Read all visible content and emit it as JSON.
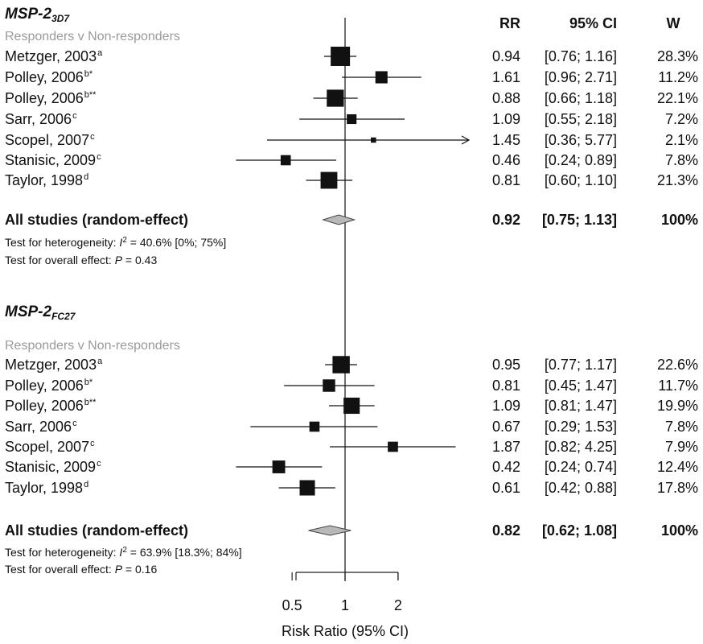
{
  "columns": {
    "rr": "RR",
    "ci": "95% CI",
    "w": "W"
  },
  "chart_data": {
    "type": "forest",
    "xlabel": "Risk Ratio (95% CI)",
    "scale": "log",
    "xlim": [
      0.42,
      2.45
    ],
    "null_value": 1,
    "ticks": [
      {
        "value": 0.5,
        "label": "0.5"
      },
      {
        "value": 1,
        "label": "1"
      },
      {
        "value": 2,
        "label": "2"
      }
    ],
    "groups": [
      {
        "title_main": "MSP-2",
        "title_sub": "3D7",
        "subtitle": "Responders v Non-responders",
        "studies": [
          {
            "name": "Metzger, 2003",
            "note": "a",
            "rr": 0.94,
            "lo": 0.76,
            "hi": 1.16,
            "rr_text": "0.94",
            "ci_text": "[0.76; 1.16]",
            "w": 28.3,
            "w_text": "28.3%"
          },
          {
            "name": "Polley, 2006",
            "note": "b*",
            "rr": 1.61,
            "lo": 0.96,
            "hi": 2.71,
            "rr_text": "1.61",
            "ci_text": "[0.96; 2.71]",
            "w": 11.2,
            "w_text": "11.2%"
          },
          {
            "name": "Polley, 2006",
            "note": "b**",
            "rr": 0.88,
            "lo": 0.66,
            "hi": 1.18,
            "rr_text": "0.88",
            "ci_text": "[0.66; 1.18]",
            "w": 22.1,
            "w_text": "22.1%"
          },
          {
            "name": "Sarr, 2006",
            "note": "c",
            "rr": 1.09,
            "lo": 0.55,
            "hi": 2.18,
            "rr_text": "1.09",
            "ci_text": "[0.55; 2.18]",
            "w": 7.2,
            "w_text": "7.2%"
          },
          {
            "name": "Scopel, 2007",
            "note": "c",
            "rr": 1.45,
            "lo": 0.36,
            "hi": 5.77,
            "rr_text": "1.45",
            "ci_text": "[0.36; 5.77]",
            "w": 2.1,
            "w_text": "2.1%"
          },
          {
            "name": "Stanisic, 2009",
            "note": "c",
            "rr": 0.46,
            "lo": 0.24,
            "hi": 0.89,
            "rr_text": "0.46",
            "ci_text": "[0.24; 0.89]",
            "w": 7.8,
            "w_text": "7.8%"
          },
          {
            "name": "Taylor, 1998",
            "note": "d",
            "rr": 0.81,
            "lo": 0.6,
            "hi": 1.1,
            "rr_text": "0.81",
            "ci_text": "[0.60; 1.10]",
            "w": 21.3,
            "w_text": "21.3%"
          }
        ],
        "summary": {
          "label": "All studies (random-effect)",
          "rr": 0.92,
          "lo": 0.75,
          "hi": 1.13,
          "rr_text": "0.92",
          "ci_text": "[0.75; 1.13]",
          "w_text": "100%"
        },
        "heterogeneity": {
          "prefix": "Test for heterogeneity: ",
          "stat": "I",
          "exp": "2",
          "value": " = 40.6% [0%; 75%]"
        },
        "overall": {
          "prefix": "Test for overall effect: ",
          "stat": "P",
          "value": " = 0.43"
        }
      },
      {
        "title_main": "MSP-2",
        "title_sub": "FC27",
        "subtitle": "Responders v Non-responders",
        "studies": [
          {
            "name": "Metzger, 2003",
            "note": "a",
            "rr": 0.95,
            "lo": 0.77,
            "hi": 1.17,
            "rr_text": "0.95",
            "ci_text": "[0.77; 1.17]",
            "w": 22.6,
            "w_text": "22.6%"
          },
          {
            "name": "Polley, 2006",
            "note": "b*",
            "rr": 0.81,
            "lo": 0.45,
            "hi": 1.47,
            "rr_text": "0.81",
            "ci_text": "[0.45; 1.47]",
            "w": 11.7,
            "w_text": "11.7%"
          },
          {
            "name": "Polley, 2006",
            "note": "b**",
            "rr": 1.09,
            "lo": 0.81,
            "hi": 1.47,
            "rr_text": "1.09",
            "ci_text": "[0.81; 1.47]",
            "w": 19.9,
            "w_text": "19.9%"
          },
          {
            "name": "Sarr, 2006",
            "note": "c",
            "rr": 0.67,
            "lo": 0.29,
            "hi": 1.53,
            "rr_text": "0.67",
            "ci_text": "[0.29; 1.53]",
            "w": 7.8,
            "w_text": "7.8%"
          },
          {
            "name": "Scopel, 2007",
            "note": "c",
            "rr": 1.87,
            "lo": 0.82,
            "hi": 4.25,
            "rr_text": "1.87",
            "ci_text": "[0.82; 4.25]",
            "w": 7.9,
            "w_text": "7.9%"
          },
          {
            "name": "Stanisic, 2009",
            "note": "c",
            "rr": 0.42,
            "lo": 0.24,
            "hi": 0.74,
            "rr_text": "0.42",
            "ci_text": "[0.24; 0.74]",
            "w": 12.4,
            "w_text": "12.4%"
          },
          {
            "name": "Taylor, 1998",
            "note": "d",
            "rr": 0.61,
            "lo": 0.42,
            "hi": 0.88,
            "rr_text": "0.61",
            "ci_text": "[0.42; 0.88]",
            "w": 17.8,
            "w_text": "17.8%"
          }
        ],
        "summary": {
          "label": "All studies (random-effect)",
          "rr": 0.82,
          "lo": 0.62,
          "hi": 1.08,
          "rr_text": "0.82",
          "ci_text": "[0.62; 1.08]",
          "w_text": "100%"
        },
        "heterogeneity": {
          "prefix": "Test for heterogeneity: ",
          "stat": "I",
          "exp": "2",
          "value": " = 63.9% [18.3%; 84%]"
        },
        "overall": {
          "prefix": "Test for overall effect: ",
          "stat": "P",
          "value": " = 0.16"
        }
      }
    ],
    "colors": {
      "marker": "#111111",
      "diamond_fill": "#b8b8b8",
      "diamond_stroke": "#444444",
      "subtitle": "#9a9a9a"
    }
  }
}
